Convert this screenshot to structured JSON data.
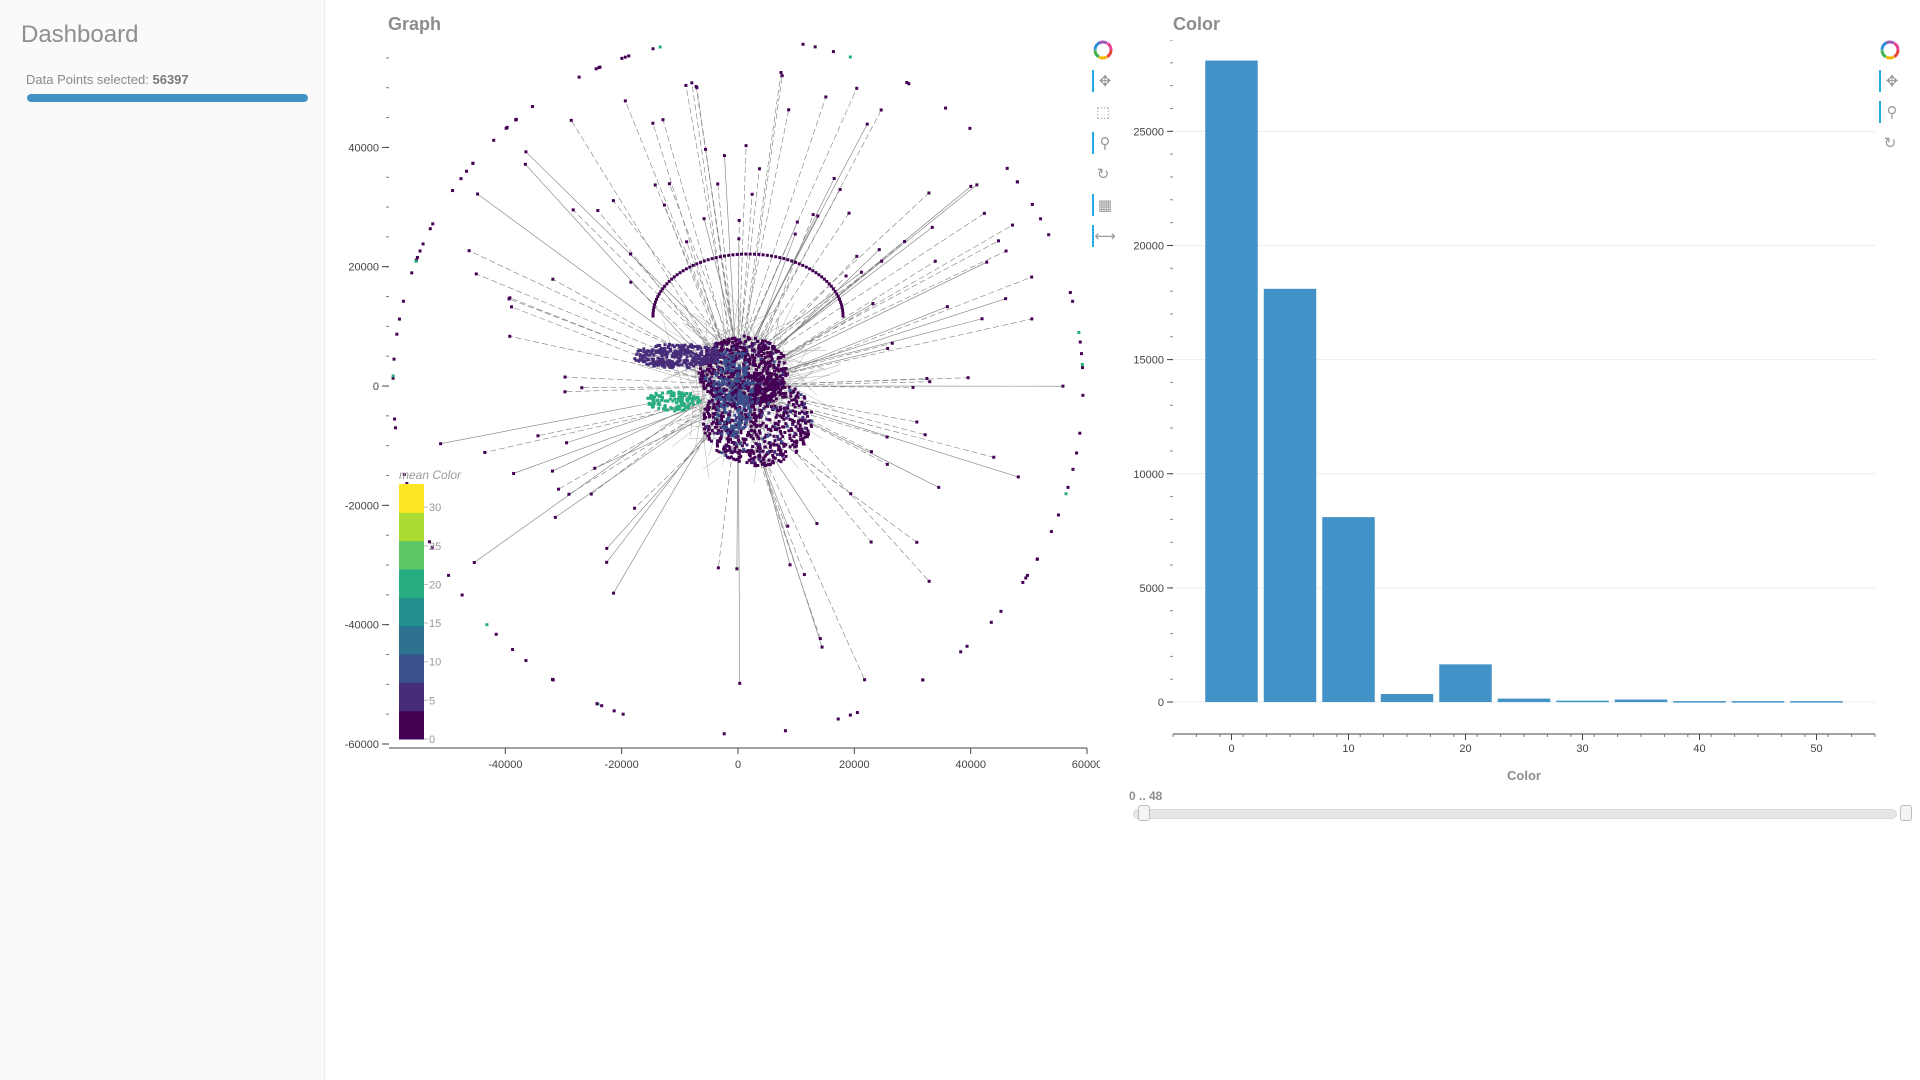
{
  "sidebar": {
    "title": "Dashboard",
    "selection_label": "Data Points selected:",
    "selection_count": "56397",
    "progress_fraction": 1.0,
    "accent_color": "#4392c7"
  },
  "graph_panel": {
    "title": "Graph",
    "colorbar_title": "mean Color",
    "colorbar_ticks": [
      "0",
      "5",
      "10",
      "15",
      "20",
      "25",
      "30"
    ],
    "colorbar_colors": [
      "#440154",
      "#472c7a",
      "#3b518b",
      "#2c718e",
      "#21908d",
      "#27ad81",
      "#5cc863",
      "#aadc32",
      "#fde725"
    ],
    "toolbar": [
      "bokeh-logo-icon",
      "pan-icon",
      "box-select-icon",
      "wheel-zoom-icon",
      "reset-icon",
      "hover-icon",
      "xpan-icon"
    ]
  },
  "color_panel": {
    "title": "Color",
    "toolbar": [
      "bokeh-logo-icon",
      "pan-icon",
      "wheel-zoom-icon",
      "reset-icon"
    ],
    "range_label": "0 .. 48",
    "range_value": [
      0,
      48
    ]
  },
  "chart_data": [
    {
      "type": "scatter",
      "description_kind": "graph-layout",
      "xlim": [
        -60000,
        60000
      ],
      "ylim": [
        -60000,
        58000
      ],
      "x_ticks": [
        -40000,
        -20000,
        0,
        20000,
        40000,
        60000
      ],
      "y_ticks": [
        -60000,
        -40000,
        -20000,
        0,
        20000,
        40000
      ],
      "grid": false
    },
    {
      "type": "bar",
      "xlabel": "Color",
      "ylabel": "",
      "x_ticks": [
        0,
        10,
        20,
        30,
        40,
        50
      ],
      "y_ticks": [
        0,
        5000,
        10000,
        15000,
        20000,
        25000
      ],
      "xlim": [
        -5,
        55
      ],
      "ylim": [
        -1400,
        29000
      ],
      "bin_width": 5,
      "bins": [
        0,
        5,
        10,
        15,
        20,
        25,
        30,
        35,
        40,
        45,
        50
      ],
      "values": [
        28100,
        18100,
        8100,
        350,
        1650,
        150,
        60,
        110,
        40,
        40,
        40
      ],
      "bar_color": "#4392c7",
      "grid": true
    }
  ]
}
